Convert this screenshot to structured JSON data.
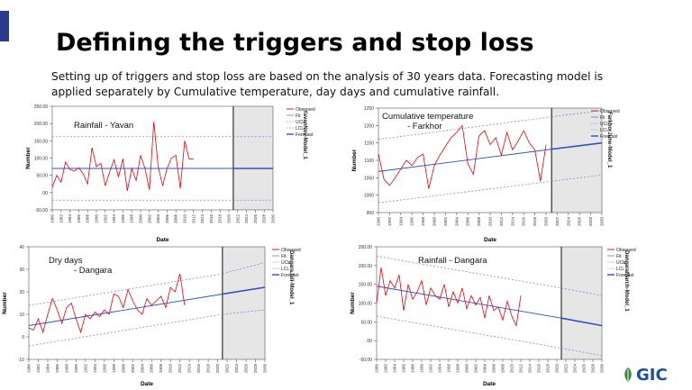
{
  "slide": {
    "title": "Defining the triggers and stop loss",
    "subtitle": "Setting up of triggers and stop loss are based on the analysis of 30 years data. Forecasting model is applied separately by Cumulative temperature, day days and cumulative rainfall.",
    "logo_text": "GIC",
    "colors": {
      "accent": "#2a3a8c",
      "observed": "#e8000a",
      "fit": "#3050c8",
      "limits": "#8a86d8",
      "forecast_bg": "#e6e6e6"
    }
  },
  "legend": {
    "observed": "Observed",
    "fit": "Fit",
    "ucl": "UCL",
    "lcl": "LCL",
    "forecast": "Forecast"
  },
  "chart_data": [
    {
      "id": "rain-yavan",
      "type": "line",
      "title": "Rainfall - Yavan",
      "xlabel": "Date",
      "ylabel": "Number",
      "model_label": "YavanNov-Model_1",
      "ylim": [
        -50,
        250
      ],
      "yticks": [
        -50,
        0,
        50,
        100,
        150,
        200,
        250
      ],
      "ytick_labels": [
        "-50.00",
        ".00",
        "50.00",
        "100.00",
        "150.00",
        "200.00",
        "250.00"
      ],
      "x_start": 1980,
      "x_end": 2030,
      "forecast_start": 2021,
      "xtick_labels": [
        "1980",
        "1982",
        "1984",
        "1986",
        "1988",
        "1990",
        "1992",
        "1994",
        "1996",
        "1998",
        "2000",
        "2002",
        "2004",
        "2006",
        "2008",
        "2010",
        "2012",
        "2014",
        "2016",
        "2018",
        "2020",
        "2022",
        "2024",
        "2026",
        "2028",
        "2030"
      ],
      "observed": {
        "x_start": 1980,
        "values": [
          15,
          50,
          30,
          88,
          67,
          62,
          72,
          55,
          25,
          130,
          75,
          85,
          20,
          60,
          95,
          45,
          98,
          5,
          70,
          35,
          108,
          70,
          8,
          205,
          75,
          20,
          70,
          100,
          108,
          12,
          150,
          98,
          98
        ]
      },
      "fit": {
        "start": [
          1980,
          70
        ],
        "end": [
          2021,
          70
        ]
      },
      "ucl": {
        "start": [
          1980,
          162
        ],
        "end": [
          2021,
          162
        ]
      },
      "lcl": {
        "start": [
          1980,
          -22
        ],
        "end": [
          2021,
          -22
        ]
      },
      "forecast": {
        "start": [
          2021,
          70
        ],
        "end": [
          2030,
          70
        ]
      },
      "forecast_ucl": {
        "start": [
          2021,
          162
        ],
        "end": [
          2030,
          162
        ]
      },
      "forecast_lcl": {
        "start": [
          2021,
          -22
        ],
        "end": [
          2030,
          -22
        ]
      }
    },
    {
      "id": "temp-farkhor",
      "type": "line",
      "title": "Cumulative temperature - Farkhor",
      "title_lines": [
        "Cumulative temperature",
        "- Farkhor"
      ],
      "xlabel": "Date",
      "ylabel": "Number",
      "model_label": "FarkhorJune-Model_1",
      "ylim": [
        950,
        1250
      ],
      "yticks": [
        950,
        1000,
        1050,
        1100,
        1150,
        1200,
        1250
      ],
      "ytick_labels": [
        "950",
        "1000",
        "1050",
        "1100",
        "1150",
        "1200",
        "1250"
      ],
      "x_start": 1990,
      "x_end": 2030,
      "forecast_start": 2021,
      "xtick_labels": [
        "1990",
        "1992",
        "1994",
        "1996",
        "1998",
        "2000",
        "2002",
        "2004",
        "2006",
        "2008",
        "2010",
        "2012",
        "2014",
        "2016",
        "2018",
        "2020",
        "2022",
        "2024",
        "2026",
        "2028",
        "2030"
      ],
      "observed": {
        "x_start": 1990,
        "values": [
          1118,
          1045,
          1028,
          1050,
          1075,
          1100,
          1085,
          1108,
          1118,
          1018,
          1085,
          1115,
          1140,
          1165,
          1180,
          1200,
          1090,
          1060,
          1170,
          1185,
          1145,
          1165,
          1115,
          1180,
          1130,
          1155,
          1185,
          1150,
          1130,
          1040,
          1145
        ]
      },
      "fit": {
        "start": [
          1990,
          1068
        ],
        "end": [
          2021,
          1132
        ]
      },
      "ucl": {
        "start": [
          1990,
          1160
        ],
        "end": [
          2021,
          1225
        ]
      },
      "lcl": {
        "start": [
          1990,
          978
        ],
        "end": [
          2021,
          1040
        ]
      },
      "forecast": {
        "start": [
          2021,
          1132
        ],
        "end": [
          2030,
          1150
        ]
      },
      "forecast_ucl": {
        "start": [
          2021,
          1225
        ],
        "end": [
          2030,
          1243
        ]
      },
      "forecast_lcl": {
        "start": [
          2021,
          1040
        ],
        "end": [
          2030,
          1058
        ]
      }
    },
    {
      "id": "dry-dangara",
      "type": "line",
      "title": "Dry days - Dangara",
      "title_lines": [
        "Dry days",
        "- Dangara"
      ],
      "xlabel": "Date",
      "ylabel": "Number",
      "model_label": "DangaraJuli-Model_1",
      "ylim": [
        -10,
        40
      ],
      "yticks": [
        -10,
        0,
        10,
        20,
        30,
        40
      ],
      "ytick_labels": [
        "-10",
        "0",
        "10",
        "20",
        "30",
        "40"
      ],
      "x_start": 1980,
      "x_end": 2030,
      "forecast_start": 2021,
      "xtick_labels": [
        "1980",
        "1982",
        "1984",
        "1986",
        "1988",
        "1990",
        "1992",
        "1994",
        "1996",
        "1998",
        "2000",
        "2002",
        "2004",
        "2006",
        "2008",
        "2010",
        "2012",
        "2014",
        "2016",
        "2018",
        "2020",
        "2022",
        "2024",
        "2026",
        "2028",
        "2030"
      ],
      "observed": {
        "x_start": 1980,
        "values": [
          4,
          3,
          8,
          2,
          10,
          17,
          12,
          6,
          13,
          15,
          8,
          2,
          10,
          8,
          11,
          9,
          12,
          10,
          19,
          18,
          13,
          21,
          16,
          12,
          10,
          17,
          14,
          16,
          18,
          13,
          22,
          20,
          28,
          14
        ]
      },
      "fit": {
        "start": [
          1980,
          5
        ],
        "end": [
          2021,
          19
        ]
      },
      "ucl": {
        "start": [
          1980,
          14
        ],
        "end": [
          2021,
          28
        ]
      },
      "lcl": {
        "start": [
          1980,
          -4
        ],
        "end": [
          2021,
          10
        ]
      },
      "forecast": {
        "start": [
          2021,
          19
        ],
        "end": [
          2030,
          22
        ]
      },
      "forecast_ucl": {
        "start": [
          2021,
          28
        ],
        "end": [
          2030,
          33
        ]
      },
      "forecast_lcl": {
        "start": [
          2021,
          10
        ],
        "end": [
          2030,
          12
        ]
      }
    },
    {
      "id": "rain-dangara",
      "type": "line",
      "title": "Rainfall - Dangara",
      "xlabel": "Date",
      "ylabel": "Number",
      "model_label": "DangaraMarch-Model_1",
      "ylim": [
        -50,
        250
      ],
      "yticks": [
        -50,
        0,
        50,
        100,
        150,
        200,
        250
      ],
      "ytick_labels": [
        "-50.00",
        ".00",
        "50.00",
        "100.00",
        "150.00",
        "200.00",
        "250.00"
      ],
      "x_start": 1980,
      "x_end": 2030,
      "forecast_start": 2021,
      "xtick_labels": [
        "1980",
        "1982",
        "1984",
        "1986",
        "1988",
        "1990",
        "1992",
        "1994",
        "1996",
        "1998",
        "2000",
        "2002",
        "2004",
        "2006",
        "2008",
        "2010",
        "2012",
        "2014",
        "2016",
        "2018",
        "2020",
        "2022",
        "2024",
        "2026",
        "2028",
        "2030"
      ],
      "observed": {
        "x_start": 1980,
        "values": [
          100,
          195,
          120,
          160,
          140,
          175,
          80,
          150,
          110,
          130,
          160,
          95,
          140,
          120,
          110,
          150,
          90,
          130,
          100,
          140,
          85,
          120,
          95,
          115,
          60,
          120,
          80,
          90,
          55,
          105,
          65,
          40,
          120
        ]
      },
      "fit": {
        "start": [
          1980,
          145
        ],
        "end": [
          2021,
          60
        ]
      },
      "ucl": {
        "start": [
          1980,
          225
        ],
        "end": [
          2021,
          140
        ]
      },
      "lcl": {
        "start": [
          1980,
          65
        ],
        "end": [
          2021,
          -20
        ]
      },
      "forecast": {
        "start": [
          2021,
          60
        ],
        "end": [
          2030,
          40
        ]
      },
      "forecast_ucl": {
        "start": [
          2021,
          140
        ],
        "end": [
          2030,
          120
        ]
      },
      "forecast_lcl": {
        "start": [
          2021,
          -20
        ],
        "end": [
          2030,
          -40
        ]
      }
    }
  ]
}
